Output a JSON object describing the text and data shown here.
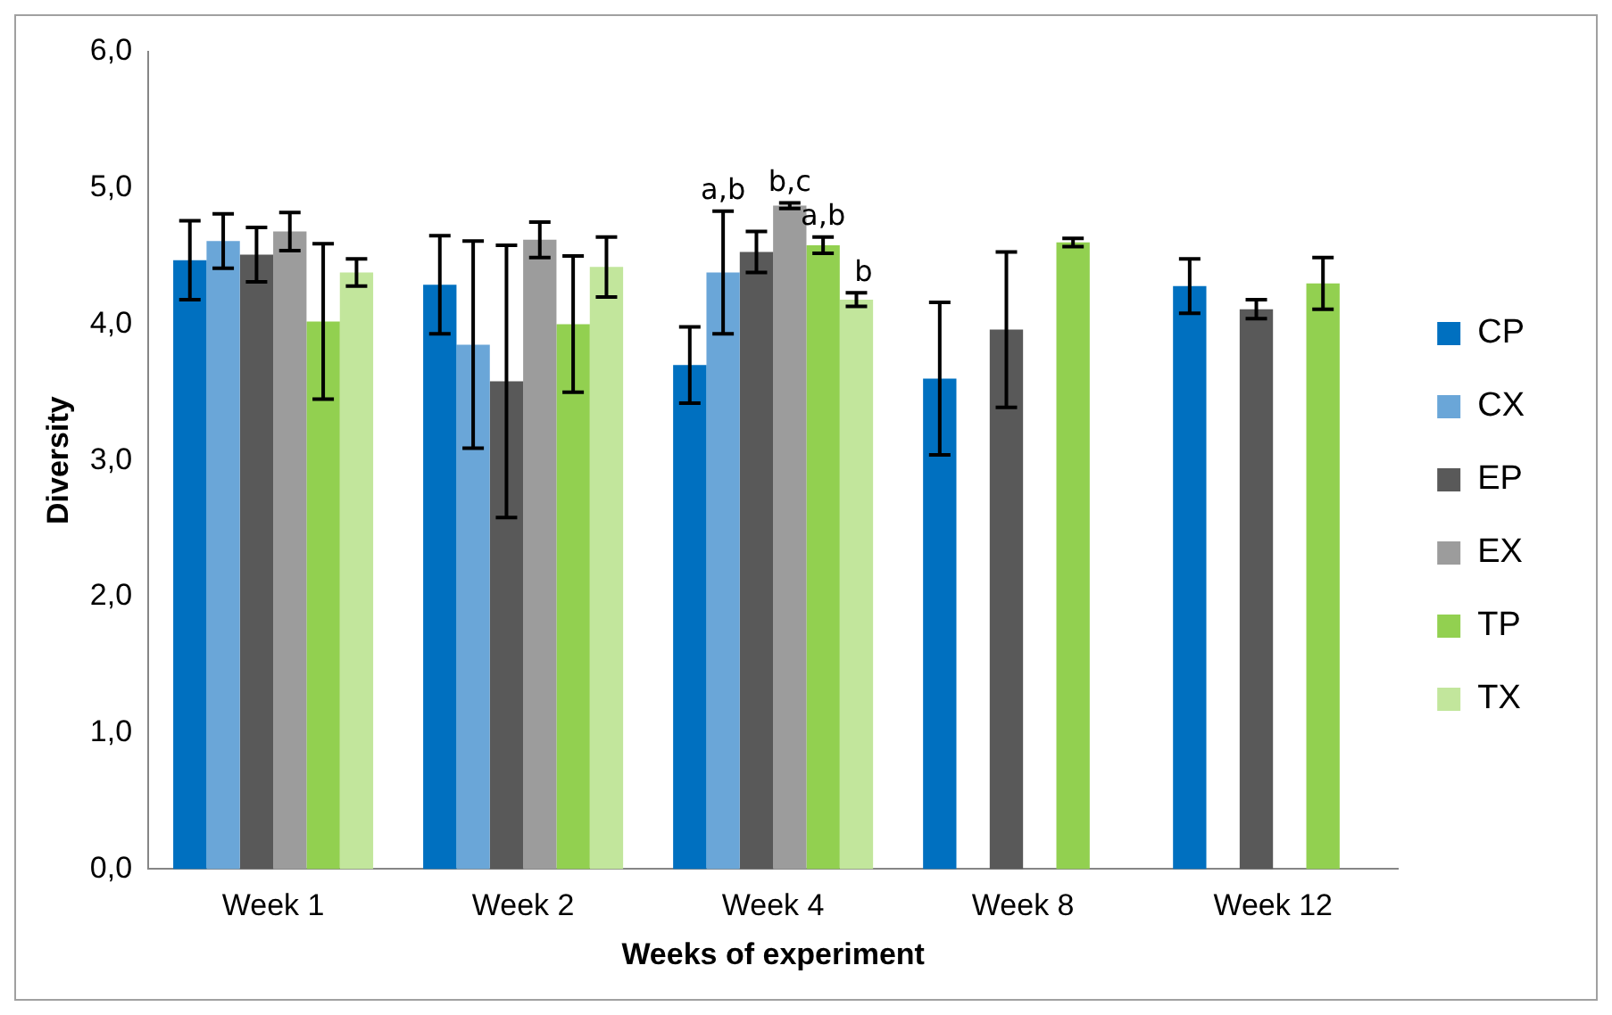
{
  "chart_data": {
    "type": "bar",
    "xlabel": "Weeks of experiment",
    "ylabel": "Diversity",
    "categories": [
      "Week 1",
      "Week 2",
      "Week 4",
      "Week 8",
      "Week 12"
    ],
    "series": [
      {
        "name": "CP",
        "color": "#0070c0",
        "values": [
          4.47,
          4.29,
          3.7,
          3.6,
          4.28
        ],
        "errors": [
          0.29,
          0.36,
          0.28,
          0.56,
          0.2
        ]
      },
      {
        "name": "CX",
        "color": "#6aa6d8",
        "values": [
          4.61,
          3.85,
          4.38,
          null,
          null
        ],
        "errors": [
          0.2,
          0.76,
          0.45,
          null,
          null
        ]
      },
      {
        "name": "EP",
        "color": "#595959",
        "values": [
          4.51,
          3.58,
          4.53,
          3.96,
          4.11
        ],
        "errors": [
          0.2,
          1.0,
          0.15,
          0.57,
          0.07
        ]
      },
      {
        "name": "EX",
        "color": "#9c9c9c",
        "values": [
          4.68,
          4.62,
          4.87,
          null,
          null
        ],
        "errors": [
          0.14,
          0.13,
          0.02,
          null,
          null
        ]
      },
      {
        "name": "TP",
        "color": "#92d050",
        "values": [
          4.02,
          4.0,
          4.58,
          4.6,
          4.3
        ],
        "errors": [
          0.57,
          0.5,
          0.06,
          0.03,
          0.19
        ]
      },
      {
        "name": "TX",
        "color": "#c2e69c",
        "values": [
          4.38,
          4.42,
          4.18,
          null,
          null
        ],
        "errors": [
          0.1,
          0.22,
          0.05,
          null,
          null
        ]
      }
    ],
    "ylim": [
      0,
      6
    ],
    "yticks": [
      {
        "value": 0,
        "label": "0,0"
      },
      {
        "value": 1,
        "label": "1,0"
      },
      {
        "value": 2,
        "label": "2,0"
      },
      {
        "value": 3,
        "label": "3,0"
      },
      {
        "value": 4,
        "label": "4,0"
      },
      {
        "value": 5,
        "label": "5,0"
      },
      {
        "value": 6,
        "label": "6,0"
      }
    ],
    "annotations": [
      {
        "text": "a,b",
        "x": "Week 4",
        "y": 4.83
      },
      {
        "text": "b,c",
        "x": "Week 4",
        "y": 4.89
      },
      {
        "text": "a,b",
        "x": "Week 4",
        "y": 4.64
      },
      {
        "text": "b",
        "x": "Week 4",
        "y": 4.23
      }
    ],
    "grid": false,
    "legend": "right"
  }
}
